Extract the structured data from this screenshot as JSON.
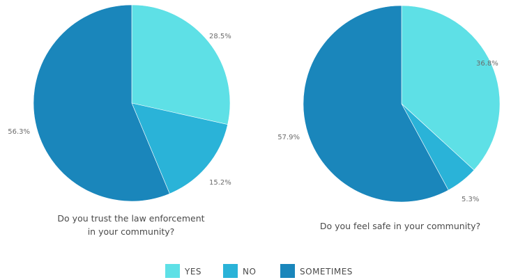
{
  "chart_data": [
    {
      "type": "pie",
      "title_lines": [
        "Do you trust the law enforcement",
        "in your community?"
      ],
      "slices": [
        {
          "category": "YES",
          "value": 28.5,
          "label": "28.5%"
        },
        {
          "category": "NO",
          "value": 15.2,
          "label": "15.2%"
        },
        {
          "category": "SOMETIMES",
          "value": 56.3,
          "label": "56.3%"
        }
      ]
    },
    {
      "type": "pie",
      "title_lines": [
        "Do you feel safe in your community?"
      ],
      "slices": [
        {
          "category": "YES",
          "value": 36.8,
          "label": "36.8%"
        },
        {
          "category": "NO",
          "value": 5.3,
          "label": "5.3%"
        },
        {
          "category": "SOMETIMES",
          "value": 57.9,
          "label": "57.9%"
        }
      ]
    }
  ],
  "legend": [
    {
      "category": "YES",
      "label": "YES",
      "color": "#5ee0e6"
    },
    {
      "category": "NO",
      "label": "NO",
      "color": "#2ab3d8"
    },
    {
      "category": "SOMETIMES",
      "label": "SOMETIMES",
      "color": "#1a86bb"
    }
  ]
}
